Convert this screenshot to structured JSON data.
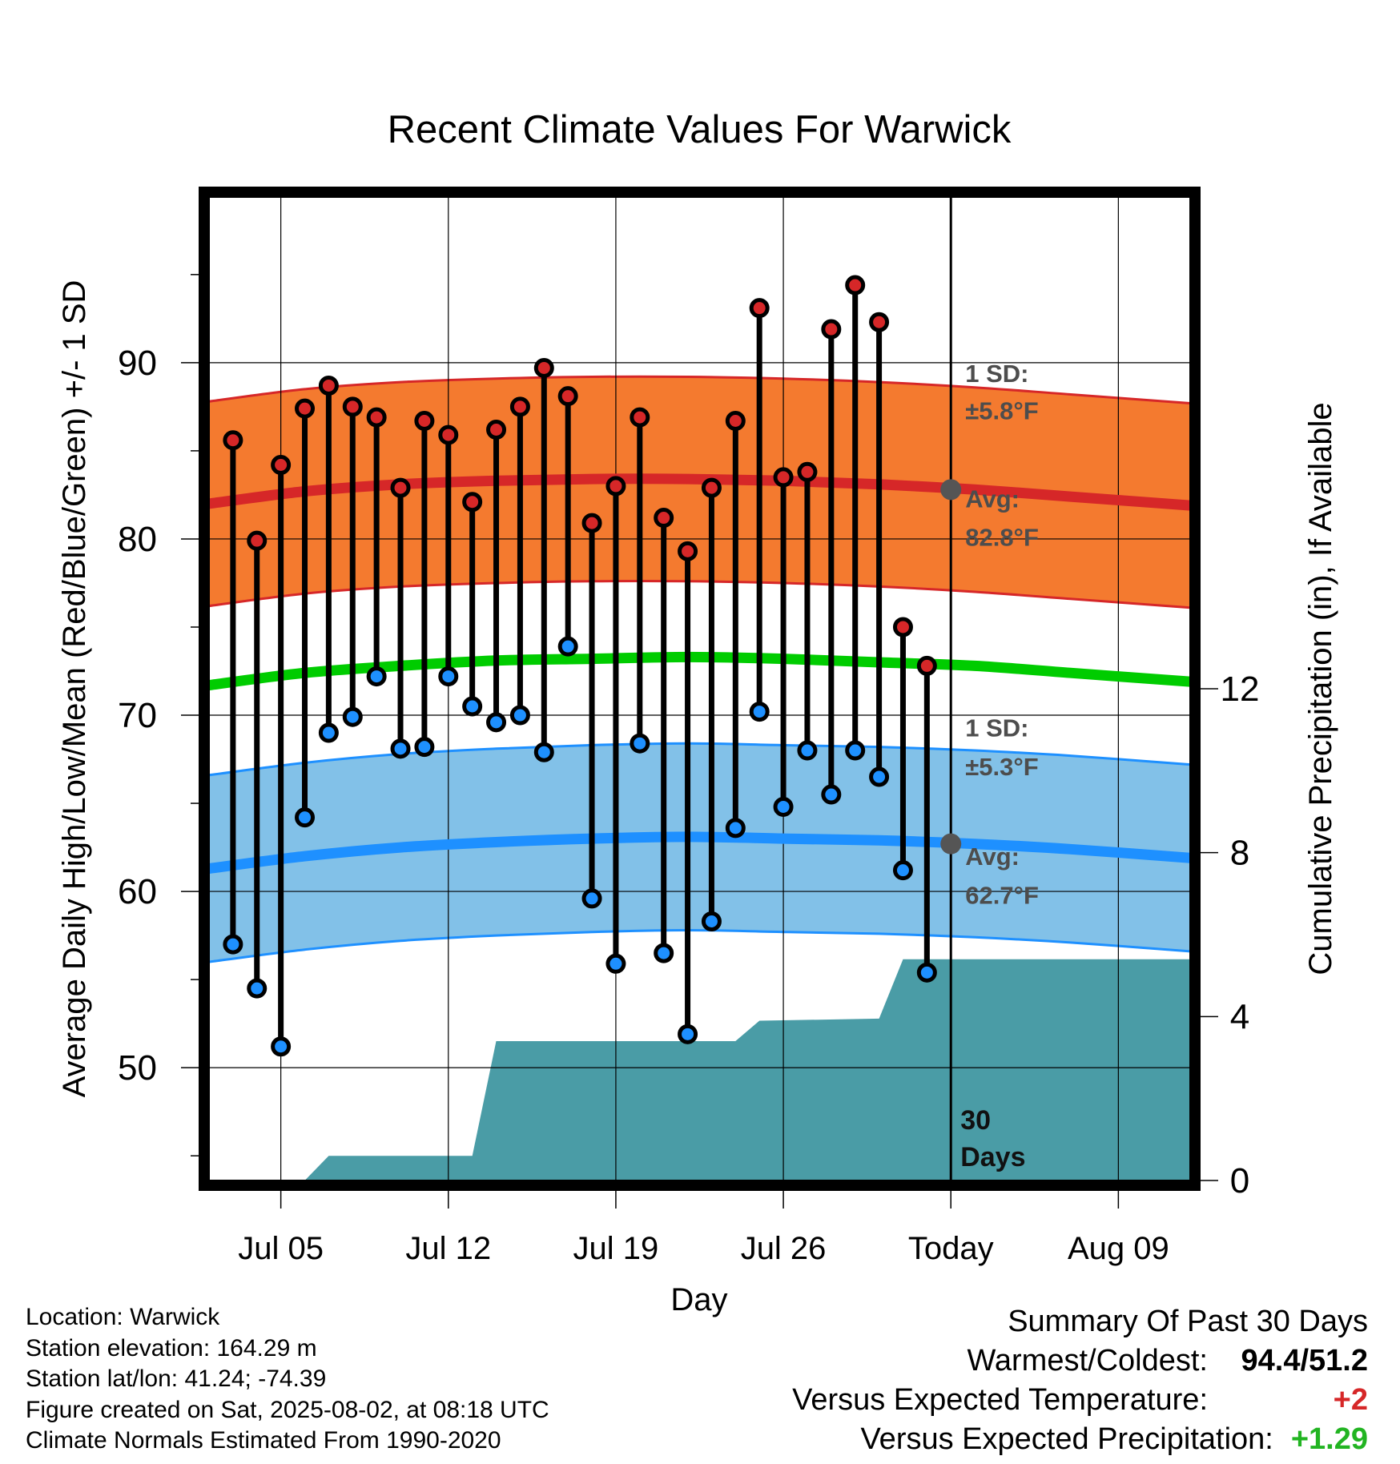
{
  "chart_data": {
    "type": "line",
    "title": "Recent Climate Values For Warwick",
    "xlabel": "Day",
    "ylabel": "Average Daily High/Low/Mean (Red/Blue/Green) +/- 1 SD",
    "y2label": "Cumulative Precipitation (in), If Available",
    "x_range": [
      "2025-07-02",
      "2025-08-12"
    ],
    "ylim": [
      43.6,
      99.4
    ],
    "y2lim": [
      0,
      24
    ],
    "y_ticks": [
      50,
      60,
      70,
      80,
      90
    ],
    "y2_ticks": [
      0,
      4,
      8,
      12
    ],
    "x_ticks": [
      {
        "date": "2025-07-05",
        "label": "Jul 05"
      },
      {
        "date": "2025-07-12",
        "label": "Jul 12"
      },
      {
        "date": "2025-07-19",
        "label": "Jul 19"
      },
      {
        "date": "2025-07-26",
        "label": "Jul 26"
      },
      {
        "date": "2025-08-02",
        "label": "Today"
      },
      {
        "date": "2025-08-09",
        "label": "Aug 09"
      }
    ],
    "grid": true,
    "dates": [
      "2025-07-03",
      "2025-07-04",
      "2025-07-05",
      "2025-07-06",
      "2025-07-07",
      "2025-07-08",
      "2025-07-09",
      "2025-07-10",
      "2025-07-11",
      "2025-07-12",
      "2025-07-13",
      "2025-07-14",
      "2025-07-15",
      "2025-07-16",
      "2025-07-17",
      "2025-07-18",
      "2025-07-19",
      "2025-07-20",
      "2025-07-21",
      "2025-07-22",
      "2025-07-23",
      "2025-07-24",
      "2025-07-25",
      "2025-07-26",
      "2025-07-27",
      "2025-07-28",
      "2025-07-29",
      "2025-07-30",
      "2025-07-31",
      "2025-08-01"
    ],
    "series": [
      {
        "name": "High",
        "color": "#d62728",
        "values": [
          85.6,
          79.9,
          84.2,
          87.4,
          88.7,
          87.5,
          86.9,
          82.9,
          86.7,
          85.9,
          82.1,
          86.2,
          87.5,
          89.7,
          88.1,
          80.9,
          83.0,
          86.9,
          81.2,
          79.3,
          82.9,
          86.7,
          93.1,
          83.5,
          83.8,
          91.9,
          94.4,
          92.3,
          75.0,
          72.8
        ]
      },
      {
        "name": "Low",
        "color": "#1e90ff",
        "values": [
          57.0,
          54.5,
          51.2,
          64.2,
          69.0,
          69.9,
          72.2,
          68.1,
          68.2,
          72.2,
          70.5,
          69.6,
          70.0,
          67.9,
          73.9,
          59.6,
          55.9,
          68.4,
          56.5,
          51.9,
          58.3,
          63.6,
          70.2,
          64.8,
          68.0,
          65.5,
          68.0,
          66.5,
          61.2,
          55.4
        ]
      }
    ],
    "normals": {
      "x": [
        "2025-07-02",
        "2025-07-06",
        "2025-07-10",
        "2025-07-14",
        "2025-07-18",
        "2025-07-22",
        "2025-07-26",
        "2025-07-30",
        "2025-08-03",
        "2025-08-07",
        "2025-08-12"
      ],
      "high_avg": [
        82.0,
        82.7,
        83.1,
        83.3,
        83.4,
        83.4,
        83.3,
        83.1,
        82.8,
        82.4,
        81.9
      ],
      "high_sd": 5.8,
      "low_avg": [
        61.3,
        62.0,
        62.5,
        62.8,
        63.0,
        63.1,
        63.0,
        62.9,
        62.7,
        62.4,
        61.9
      ],
      "low_sd": 5.3,
      "mean_avg": [
        71.7,
        72.4,
        72.8,
        73.1,
        73.2,
        73.3,
        73.2,
        73.0,
        72.8,
        72.4,
        71.9
      ]
    },
    "precipitation": {
      "x": [
        "2025-07-05",
        "2025-07-06",
        "2025-07-07",
        "2025-07-13",
        "2025-07-14",
        "2025-07-24",
        "2025-07-25",
        "2025-07-30",
        "2025-07-31",
        "2025-08-12"
      ],
      "values": [
        0,
        0,
        0.6,
        0.6,
        3.4,
        3.4,
        3.9,
        3.95,
        5.4,
        5.4
      ]
    },
    "annotations": {
      "high_sd_label": "1 SD:",
      "high_sd_value": "±5.8°F",
      "high_avg_label": "Avg:",
      "high_avg_value": "82.8°F",
      "low_sd_label": "1 SD:",
      "low_sd_value": "±5.3°F",
      "low_avg_label": "Avg:",
      "low_avg_value": "62.7°F",
      "window_days": "30",
      "window_unit": "Days"
    },
    "colors": {
      "high_band": "#f47a2f",
      "high_line": "#d62728",
      "low_band": "#82c1e8",
      "low_line": "#1e90ff",
      "mean_line": "#00cc00",
      "precip": "#4a9ca6",
      "marker_today": "#555555"
    }
  },
  "info": {
    "location": "Location: Warwick",
    "elevation": "Station elevation: 164.29 m",
    "latlon": "Station lat/lon: 41.24; -74.39",
    "created": "Figure created on Sat, 2025-08-02, at 08:18 UTC",
    "normals": "Climate Normals Estimated From 1990-2020"
  },
  "summary": {
    "heading": "Summary Of Past 30 Days",
    "warmest_coldest_label": "Warmest/Coldest:",
    "warmest_coldest_value": "94.4/51.2",
    "temp_label": "Versus Expected Temperature:",
    "temp_value": "+2",
    "temp_color": "#d62728",
    "precip_label": "Versus Expected Precipitation:",
    "precip_value": "+1.29",
    "precip_color": "#22b422"
  }
}
